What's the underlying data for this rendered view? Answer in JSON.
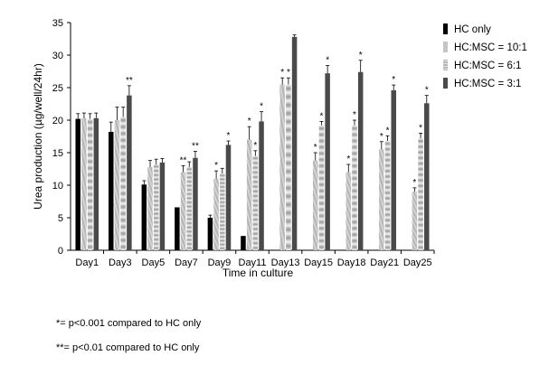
{
  "chart_data": {
    "type": "bar",
    "xlabel": "Time in culture",
    "ylabel": "Urea production (µg/well/24hr)",
    "ylim": [
      0,
      35
    ],
    "yticks": [
      0,
      5,
      10,
      15,
      20,
      25,
      30,
      35
    ],
    "grid": false,
    "legend_position": "right",
    "categories": [
      "Day1",
      "Day3",
      "Day5",
      "Day7",
      "Day9",
      "Day11",
      "Day13",
      "Day15",
      "Day18",
      "Day21",
      "Day25"
    ],
    "series": [
      {
        "name": "HC only",
        "color": "#000000",
        "values": [
          20.2,
          18.2,
          10.1,
          6.6,
          5.0,
          2.2,
          null,
          null,
          null,
          null,
          null
        ],
        "errors": [
          0.8,
          1.5,
          0.6,
          0,
          0.4,
          0,
          null,
          null,
          null,
          null,
          null
        ],
        "marks": [
          "",
          "",
          "",
          "",
          "",
          "",
          "",
          "",
          "",
          "",
          ""
        ]
      },
      {
        "name": "HC:MSC = 10:1",
        "color": "#b5b5b5",
        "values": [
          20.3,
          20.0,
          12.8,
          12.0,
          11.0,
          17.0,
          25.5,
          13.8,
          12.0,
          15.5,
          9.0
        ],
        "errors": [
          0.8,
          2.0,
          1.0,
          1.0,
          1.2,
          2.0,
          1.0,
          1.2,
          1.2,
          1.2,
          0.6
        ],
        "marks": [
          "",
          "",
          "",
          "**",
          "*",
          "*",
          "*",
          "*",
          "*",
          "*",
          "*"
        ]
      },
      {
        "name": "HC:MSC = 6:1",
        "color": "#cfcfcf",
        "values": [
          20.2,
          20.5,
          13.2,
          12.8,
          11.8,
          14.5,
          25.5,
          19.2,
          19.2,
          16.8,
          17.2
        ],
        "errors": [
          0.8,
          1.5,
          0.8,
          0.8,
          0.8,
          0.8,
          1.0,
          0.6,
          0.8,
          0.8,
          0.8
        ],
        "marks": [
          "",
          "",
          "",
          "",
          "",
          "*",
          "*",
          "*",
          "*",
          "*",
          "*"
        ]
      },
      {
        "name": "HC:MSC = 3:1",
        "color": "#4a4a4a",
        "values": [
          20.3,
          23.8,
          13.5,
          14.2,
          16.2,
          19.8,
          32.8,
          27.2,
          27.4,
          24.6,
          22.6
        ],
        "errors": [
          0.8,
          1.5,
          0.6,
          1.0,
          0.6,
          1.5,
          0.3,
          1.2,
          1.8,
          0.8,
          1.2
        ],
        "marks": [
          "",
          "**",
          "",
          "**",
          "*",
          "*",
          "",
          "*",
          "*",
          "*",
          "*"
        ]
      }
    ]
  },
  "footnotes": {
    "note1": "*= p<0.001 compared to HC only",
    "note2": "**= p<0.01 compared to HC only"
  }
}
